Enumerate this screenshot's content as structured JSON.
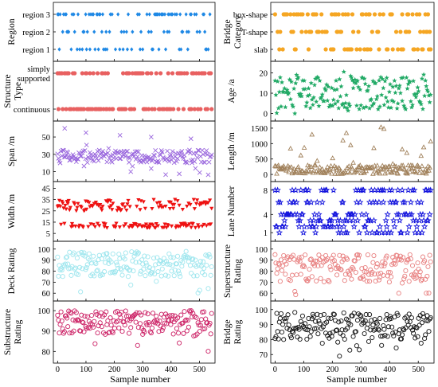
{
  "chart_data": [
    {
      "id": "region",
      "type": "scatter",
      "ylabel": "Region",
      "y_categories": [
        "region 1",
        "region 2",
        "region 3"
      ],
      "color": "#1e88e5",
      "marker": "diamond",
      "x_range": [
        0,
        545
      ],
      "note": "categorical strip: each sample placed at its category level"
    },
    {
      "id": "structure_type",
      "type": "scatter",
      "ylabel": "Structure Type",
      "y_categories": [
        "continuous",
        "simply supported"
      ],
      "color": "#e86060",
      "marker": "circle",
      "x_range": [
        0,
        545
      ]
    },
    {
      "id": "span",
      "type": "scatter",
      "ylabel": "Span /m",
      "yticks": [
        10,
        30,
        50
      ],
      "ylim": [
        5,
        62
      ],
      "color": "#9966dd",
      "marker": "cross",
      "typical_range": [
        20,
        35
      ],
      "spikes": [
        [
          25,
          60
        ],
        [
          100,
          55
        ],
        [
          220,
          52
        ],
        [
          330,
          50
        ],
        [
          470,
          48
        ]
      ]
    },
    {
      "id": "width",
      "type": "scatter",
      "ylabel": "Width /m",
      "yticks": [
        5,
        15,
        25,
        35,
        45
      ],
      "ylim": [
        3,
        46
      ],
      "color": "#ee1111",
      "marker": "triangle-down",
      "bands": [
        [
          10,
          14
        ],
        [
          25,
          35
        ]
      ]
    },
    {
      "id": "deck_rating",
      "type": "scatter",
      "ylabel": "Deck Rating",
      "yticks": [
        60,
        70,
        80,
        90,
        100
      ],
      "ylim": [
        58,
        102
      ],
      "color": "#9ee6ee",
      "marker": "circle-open",
      "typical_range": [
        75,
        98
      ]
    },
    {
      "id": "substructure_rating",
      "type": "scatter",
      "ylabel": "Substructure Rating",
      "yticks": [
        80,
        90,
        100
      ],
      "ylim": [
        77,
        102
      ],
      "color": "#cc2266",
      "marker": "circle-open",
      "typical_range": [
        88,
        100
      ]
    },
    {
      "id": "bridge_category",
      "type": "scatter",
      "ylabel": "Bridge Category",
      "y_categories": [
        "slab",
        "T-shape",
        "box-shape"
      ],
      "color": "#f5a623",
      "marker": "circle",
      "x_range": [
        0,
        545
      ]
    },
    {
      "id": "age",
      "type": "scatter",
      "ylabel": "Age /a",
      "yticks": [
        0,
        10,
        20
      ],
      "ylim": [
        -1,
        23
      ],
      "color": "#22aa66",
      "marker": "star",
      "typical_range": [
        2,
        18
      ]
    },
    {
      "id": "length",
      "type": "scatter",
      "ylabel": "Length /m",
      "yticks": [
        0,
        500,
        1000,
        1500
      ],
      "ylim": [
        -50,
        1550
      ],
      "color": "#a0805a",
      "marker": "triangle-open",
      "typical_range": [
        20,
        300
      ],
      "spikes": [
        [
          90,
          620
        ],
        [
          370,
          1530
        ],
        [
          380,
          1480
        ],
        [
          460,
          700
        ]
      ]
    },
    {
      "id": "lane_number",
      "type": "scatter",
      "ylabel": "Lane Number",
      "yticks": [
        1,
        4,
        8
      ],
      "ylim": [
        0.5,
        8.5
      ],
      "y_levels": [
        1,
        2,
        3,
        4,
        6,
        8
      ],
      "color": "#1111dd",
      "marker": "star-open"
    },
    {
      "id": "superstructure_rating",
      "type": "scatter",
      "ylabel": "Superstructure Rating",
      "yticks": [
        60,
        70,
        80,
        90,
        100
      ],
      "ylim": [
        58,
        102
      ],
      "color": "#e88080",
      "marker": "circle-open",
      "typical_range": [
        70,
        95
      ]
    },
    {
      "id": "bridge_rating",
      "type": "scatter",
      "ylabel": "Bridge Rating",
      "yticks": [
        70,
        80,
        90,
        100
      ],
      "ylim": [
        68,
        102
      ],
      "color": "#111111",
      "marker": "circle-open",
      "typical_range": [
        80,
        98
      ]
    }
  ],
  "shared_x": {
    "label": "Sample number",
    "ticks": [
      0,
      100,
      200,
      300,
      400,
      500
    ],
    "range": [
      -15,
      555
    ],
    "n_samples": 545
  }
}
